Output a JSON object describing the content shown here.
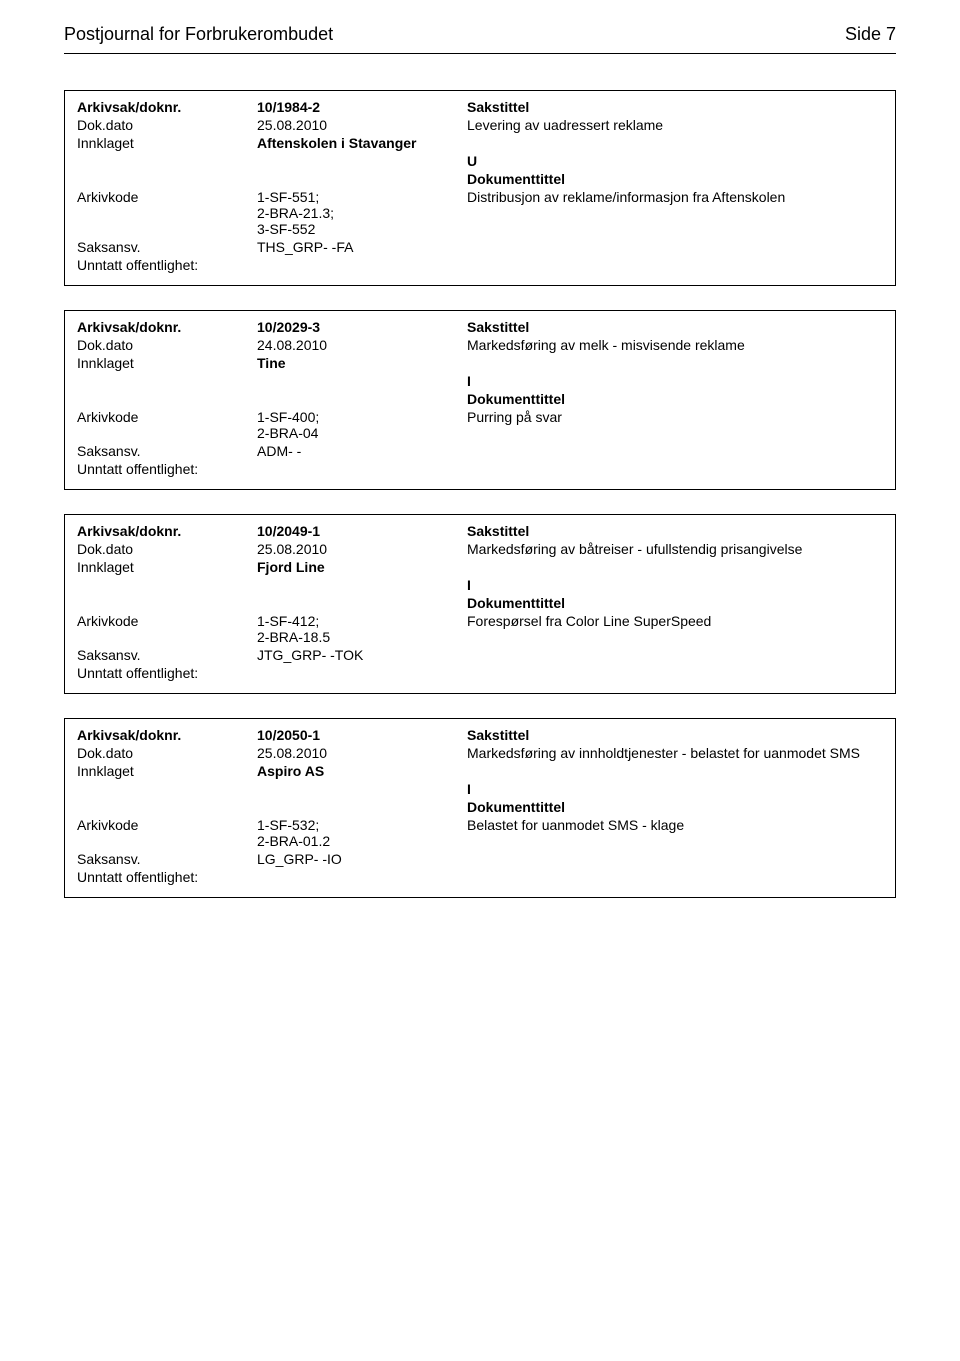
{
  "header": {
    "title": "Postjournal for Forbrukerombudet",
    "page": "Side 7"
  },
  "labels": {
    "arkivsak": "Arkivsak/doknr.",
    "dokdato": "Dok.dato",
    "innklaget": "Innklaget",
    "arkivkode": "Arkivkode",
    "saksansv": "Saksansv.",
    "unntatt": "Unntatt offentlighet:",
    "sakstittel": "Sakstittel",
    "dokumenttittel": "Dokumenttittel"
  },
  "records": [
    {
      "doknr": "10/1984-2",
      "dato": "25.08.2010",
      "sakstittel_text": "Levering av uadressert reklame",
      "innklaget_val": "Aftenskolen i Stavanger",
      "uio": "U",
      "arkivkode_val": "1-SF-551;\n2-BRA-21.3;\n3-SF-552",
      "dokumenttittel_text": "Distribusjon av reklame/informasjon fra Aftenskolen",
      "saksansv_val": "THS_GRP- -FA",
      "unntatt_val": ""
    },
    {
      "doknr": "10/2029-3",
      "dato": "24.08.2010",
      "sakstittel_text": "Markedsføring av melk - misvisende reklame",
      "innklaget_val": "Tine",
      "uio": "I",
      "arkivkode_val": "1-SF-400;\n2-BRA-04",
      "dokumenttittel_text": "Purring på svar",
      "saksansv_val": "ADM- -",
      "unntatt_val": ""
    },
    {
      "doknr": "10/2049-1",
      "dato": "25.08.2010",
      "sakstittel_text": "Markedsføring av båtreiser - ufullstendig prisangivelse",
      "innklaget_val": "Fjord Line",
      "uio": "I",
      "arkivkode_val": "1-SF-412;\n2-BRA-18.5",
      "dokumenttittel_text": "Forespørsel fra Color Line SuperSpeed",
      "saksansv_val": "JTG_GRP- -TOK",
      "unntatt_val": ""
    },
    {
      "doknr": "10/2050-1",
      "dato": "25.08.2010",
      "sakstittel_text": "Markedsføring av innholdtjenester - belastet for uanmodet SMS",
      "innklaget_val": "Aspiro AS",
      "uio": "I",
      "arkivkode_val": "1-SF-532;\n2-BRA-01.2",
      "dokumenttittel_text": "Belastet for uanmodet SMS - klage",
      "saksansv_val": "LG_GRP- -IO",
      "unntatt_val": ""
    }
  ]
}
